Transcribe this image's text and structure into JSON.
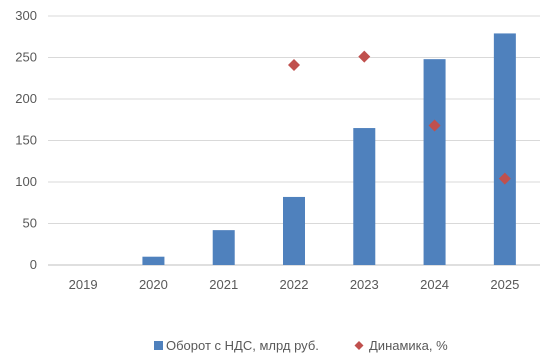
{
  "chart_data": {
    "type": "bar",
    "categories": [
      "2019",
      "2020",
      "2021",
      "2022",
      "2023",
      "2024",
      "2025"
    ],
    "series": [
      {
        "name": "Оборот с НДС, млрд руб.",
        "kind": "bar",
        "color": "#4f81bd",
        "values": [
          0,
          10,
          42,
          82,
          165,
          248,
          279
        ]
      },
      {
        "name": "Динамика, %",
        "kind": "scatter",
        "marker": "diamond",
        "color": "#c0504d",
        "values": [
          null,
          null,
          null,
          241,
          251,
          168,
          104
        ]
      }
    ],
    "yticks": [
      "0",
      "50",
      "100",
      "150",
      "200",
      "250",
      "300"
    ],
    "ylim": [
      0,
      300
    ],
    "grid": true,
    "legend": "bottom-center"
  }
}
